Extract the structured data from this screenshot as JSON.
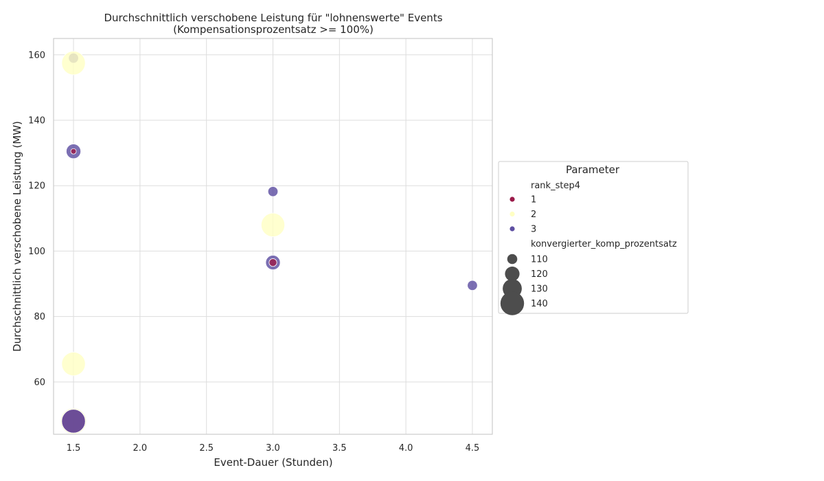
{
  "chart_data": {
    "type": "scatter",
    "title": "Durchschnittlich verschobene Leistung für \"lohnenswerte\" Events",
    "subtitle": "(Kompensationsprozentsatz >= 100%)",
    "xlabel": "Event-Dauer (Stunden)",
    "ylabel": "Durchschnittlich verschobene Leistung (MW)",
    "xlim": [
      1.35,
      4.65
    ],
    "ylim": [
      44,
      165
    ],
    "xticks": [
      "1.5",
      "2.0",
      "2.5",
      "3.0",
      "3.5",
      "4.0",
      "4.5"
    ],
    "yticks": [
      "60",
      "80",
      "100",
      "120",
      "140",
      "160"
    ],
    "grid": true,
    "legend_placement": "outside right",
    "colors": {
      "1": "#9b1b4a",
      "2": "#ffffc4",
      "3": "#5e4fa2"
    },
    "points": [
      {
        "x": 1.5,
        "y": 159.0,
        "rank": 3,
        "size": 110
      },
      {
        "x": 1.5,
        "y": 157.5,
        "rank": 2,
        "size": 140
      },
      {
        "x": 1.5,
        "y": 130.5,
        "rank": 3,
        "size": 120
      },
      {
        "x": 1.5,
        "y": 130.5,
        "rank": 1,
        "size": 100
      },
      {
        "x": 1.5,
        "y": 65.5,
        "rank": 2,
        "size": 140
      },
      {
        "x": 1.5,
        "y": 48.0,
        "rank": 2,
        "size": 145
      },
      {
        "x": 1.5,
        "y": 48.0,
        "rank": 1,
        "size": 140
      },
      {
        "x": 1.5,
        "y": 48.0,
        "rank": 3,
        "size": 140
      },
      {
        "x": 3.0,
        "y": 118.2,
        "rank": 3,
        "size": 110
      },
      {
        "x": 3.0,
        "y": 108.0,
        "rank": 2,
        "size": 140
      },
      {
        "x": 3.0,
        "y": 96.5,
        "rank": 3,
        "size": 120
      },
      {
        "x": 3.0,
        "y": 96.5,
        "rank": 1,
        "size": 105
      },
      {
        "x": 4.5,
        "y": 89.5,
        "rank": 3,
        "size": 110
      }
    ],
    "legend": {
      "title": "Parameter",
      "hue_title": "rank_step4",
      "hue_items": [
        {
          "label": "1",
          "rank": 1
        },
        {
          "label": "2",
          "rank": 2
        },
        {
          "label": "3",
          "rank": 3
        }
      ],
      "size_title": "konvergierter_komp_prozentsatz",
      "size_items": [
        {
          "label": "110",
          "size": 110
        },
        {
          "label": "120",
          "size": 120
        },
        {
          "label": "130",
          "size": 130
        },
        {
          "label": "140",
          "size": 140
        }
      ]
    }
  }
}
